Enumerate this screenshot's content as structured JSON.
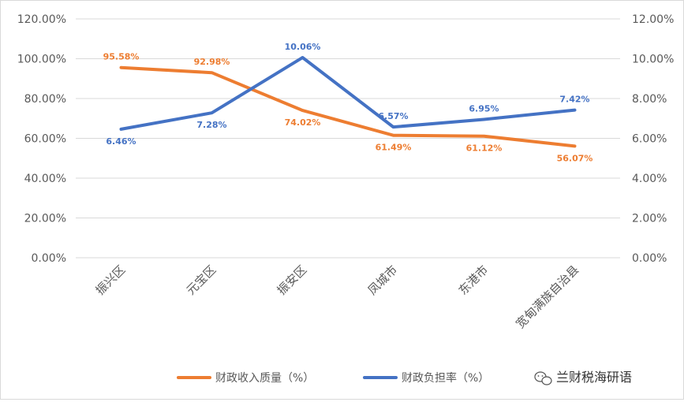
{
  "chart_data": {
    "type": "line",
    "categories": [
      "振兴区",
      "元宝区",
      "振安区",
      "凤城市",
      "东港市",
      "宽甸满族自治县"
    ],
    "series": [
      {
        "name": "财政收入质量（%）",
        "axis": "left",
        "color": "#ED7D31",
        "values": [
          95.58,
          92.98,
          74.02,
          61.49,
          61.12,
          56.07
        ],
        "labels": [
          "95.58%",
          "92.98%",
          "74.02%",
          "61.49%",
          "61.12%",
          "56.07%"
        ]
      },
      {
        "name": "财政负担率（%）",
        "axis": "right",
        "color": "#4472C4",
        "values": [
          6.46,
          7.28,
          10.06,
          6.57,
          6.95,
          7.42
        ],
        "labels": [
          "6.46%",
          "7.28%",
          "10.06%",
          "6.57%",
          "6.95%",
          "7.42%"
        ]
      }
    ],
    "y_left": {
      "min": 0,
      "max": 120,
      "ticks": [
        "0.00%",
        "20.00%",
        "40.00%",
        "60.00%",
        "80.00%",
        "100.00%",
        "120.00%"
      ]
    },
    "y_right": {
      "min": 0,
      "max": 12,
      "ticks": [
        "0.00%",
        "2.00%",
        "4.00%",
        "6.00%",
        "8.00%",
        "10.00%",
        "12.00%"
      ]
    },
    "grid": true,
    "legend": "bottom",
    "title": "",
    "xlabel": "",
    "ylabel": ""
  },
  "watermark": {
    "text": "兰财税海研语",
    "icon": "wechat-icon"
  }
}
